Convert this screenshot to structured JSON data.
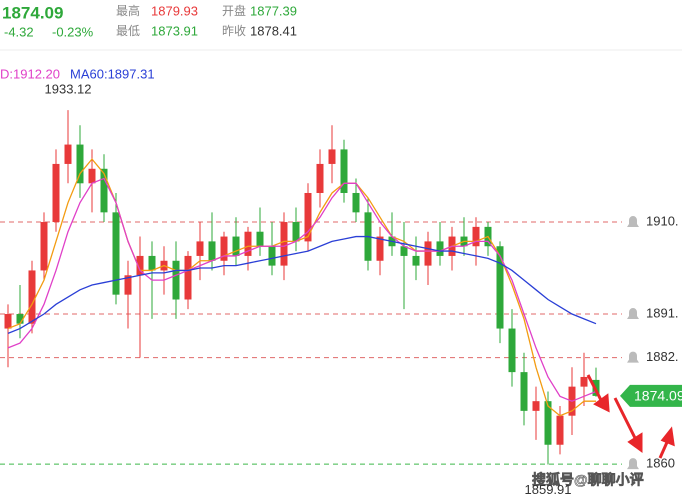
{
  "header": {
    "price": "1874.09",
    "change": "-4.32",
    "change_pct": "-0.23%",
    "stats": [
      {
        "label": "最高",
        "value": "1879.93"
      },
      {
        "label": "开盘",
        "value": "1877.39"
      },
      {
        "label": "最低",
        "value": "1873.91"
      },
      {
        "label": "昨收",
        "value": "1878.41"
      }
    ]
  },
  "watermark": "搜狐号@聊聊小评",
  "chart_data": {
    "type": "candlestick",
    "ylim": [
      1853,
      1944.5
    ],
    "up_color": "#e8393a",
    "down_color": "#2ea83a",
    "ohlc": [
      [
        1888,
        1893,
        1880,
        1891
      ],
      [
        1891,
        1897,
        1886,
        1889
      ],
      [
        1889,
        1902,
        1887,
        1900
      ],
      [
        1900,
        1912,
        1898,
        1910
      ],
      [
        1910,
        1925,
        1908,
        1922
      ],
      [
        1922,
        1933.12,
        1918,
        1926
      ],
      [
        1926,
        1930,
        1915,
        1918
      ],
      [
        1918,
        1925,
        1912,
        1921
      ],
      [
        1921,
        1924,
        1910,
        1912
      ],
      [
        1912,
        1916,
        1893,
        1895
      ],
      [
        1895,
        1902,
        1888,
        1899
      ],
      [
        1899,
        1907,
        1882,
        1903
      ],
      [
        1903,
        1906,
        1890,
        1900
      ],
      [
        1900,
        1905,
        1895,
        1902
      ],
      [
        1902,
        1906,
        1890,
        1894
      ],
      [
        1894,
        1904,
        1892,
        1903
      ],
      [
        1903,
        1910,
        1898,
        1906
      ],
      [
        1906,
        1912,
        1900,
        1902
      ],
      [
        1902,
        1908,
        1899,
        1907
      ],
      [
        1907,
        1911,
        1901,
        1903
      ],
      [
        1903,
        1909,
        1900,
        1908
      ],
      [
        1908,
        1913,
        1903,
        1905
      ],
      [
        1905,
        1910,
        1899,
        1901
      ],
      [
        1901,
        1912,
        1898,
        1910
      ],
      [
        1910,
        1913,
        1904,
        1906
      ],
      [
        1906,
        1918,
        1904,
        1916
      ],
      [
        1916,
        1925,
        1913,
        1922
      ],
      [
        1922,
        1930,
        1918,
        1925
      ],
      [
        1925,
        1927,
        1914,
        1916
      ],
      [
        1916,
        1919,
        1910,
        1912
      ],
      [
        1912,
        1915,
        1900,
        1902
      ],
      [
        1902,
        1909,
        1899,
        1907
      ],
      [
        1907,
        1912,
        1903,
        1905
      ],
      [
        1905,
        1910,
        1892,
        1903
      ],
      [
        1903,
        1907,
        1898,
        1901
      ],
      [
        1901,
        1908,
        1897,
        1906
      ],
      [
        1906,
        1910,
        1901,
        1903
      ],
      [
        1903,
        1909,
        1900,
        1907
      ],
      [
        1907,
        1911,
        1903,
        1905
      ],
      [
        1905,
        1911,
        1901,
        1909
      ],
      [
        1909,
        1910,
        1903,
        1905
      ],
      [
        1905,
        1906,
        1885,
        1888
      ],
      [
        1888,
        1892,
        1876,
        1879
      ],
      [
        1879,
        1883,
        1868,
        1871
      ],
      [
        1871,
        1876,
        1865,
        1873
      ],
      [
        1873,
        1875,
        1859.91,
        1864
      ],
      [
        1864,
        1872,
        1862,
        1870
      ],
      [
        1870,
        1880,
        1866,
        1876
      ],
      [
        1876,
        1883,
        1872,
        1878
      ],
      [
        1877.39,
        1879.93,
        1873.91,
        1874.09
      ]
    ],
    "ma_series": [
      {
        "color": "#f39c12",
        "values": [
          1888,
          1889,
          1893,
          1898,
          1906,
          1914,
          1920,
          1923,
          1920,
          1914,
          1906,
          1900,
          1900,
          1901,
          1900,
          1900,
          1902,
          1902,
          1903,
          1904,
          1905,
          1905,
          1905,
          1906,
          1906,
          1907,
          1912,
          1916,
          1918,
          1918,
          1915,
          1911,
          1907,
          1906,
          1904,
          1904,
          1904,
          1905,
          1906,
          1906,
          1907,
          1903,
          1897,
          1890,
          1880,
          1872,
          1870,
          1871,
          1873,
          1873
        ]
      },
      {
        "name": "D:1912.20",
        "color": "#e040c8",
        "values": [
          1884,
          1885,
          1888,
          1893,
          1900,
          1908,
          1914,
          1918,
          1919,
          1914,
          1906,
          1900,
          1898,
          1898,
          1899,
          1900,
          1901,
          1902,
          1903,
          1903,
          1904,
          1905,
          1905,
          1905,
          1906,
          1908,
          1911,
          1915,
          1918,
          1918,
          1914,
          1910,
          1907,
          1905,
          1904,
          1904,
          1904,
          1905,
          1905,
          1906,
          1906,
          1903,
          1898,
          1891,
          1884,
          1878,
          1874,
          1873,
          1874,
          1875
        ]
      },
      {
        "name": "MA60:1897.31",
        "color": "#2a3fd6",
        "values": [
          1887,
          1888,
          1889.5,
          1891,
          1893,
          1894.5,
          1896,
          1897,
          1897.5,
          1898,
          1898.5,
          1899,
          1899.5,
          1899.5,
          1900,
          1900,
          1900.5,
          1900.5,
          1901,
          1901,
          1901.5,
          1902,
          1902.5,
          1903,
          1903.5,
          1904,
          1905,
          1906,
          1906.5,
          1907,
          1907,
          1906.5,
          1906,
          1905.5,
          1905,
          1904.5,
          1904,
          1904,
          1903.5,
          1903,
          1902.5,
          1901.5,
          1900,
          1898,
          1896,
          1894,
          1892.5,
          1891,
          1890,
          1889
        ]
      }
    ],
    "levels": [
      {
        "value": 1910,
        "label": "1910.",
        "color": "#e06a6a"
      },
      {
        "value": 1891,
        "label": "1891.",
        "color": "#e06a6a"
      },
      {
        "value": 1882,
        "label": "1882.",
        "color": "#e06a6a"
      },
      {
        "value": 1860,
        "label": "1860",
        "color": "#3cb84a"
      }
    ],
    "annotations": [
      {
        "text": "1933.12",
        "candle": 5
      },
      {
        "text": "1859.91",
        "candle": 45
      }
    ]
  }
}
